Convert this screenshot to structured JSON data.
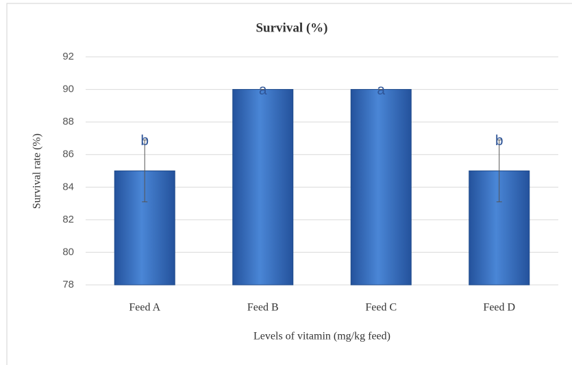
{
  "chart_data": {
    "type": "bar",
    "title": "Survival  (%)",
    "x_label": "Levels of vitamin (mg/kg feed)",
    "y_label": "Survival rate (%)",
    "categories": [
      "Feed A",
      "Feed B",
      "Feed C",
      "Feed D"
    ],
    "values": [
      85,
      90,
      90,
      85
    ],
    "errors": [
      1.9,
      0,
      0,
      1.9
    ],
    "significance_letters": [
      "b",
      "a",
      "a",
      "b"
    ],
    "color": "#3a72c4",
    "ylim": [
      78,
      92
    ],
    "yticks": [
      78,
      80,
      82,
      84,
      86,
      88,
      90,
      92
    ],
    "grid": true
  }
}
